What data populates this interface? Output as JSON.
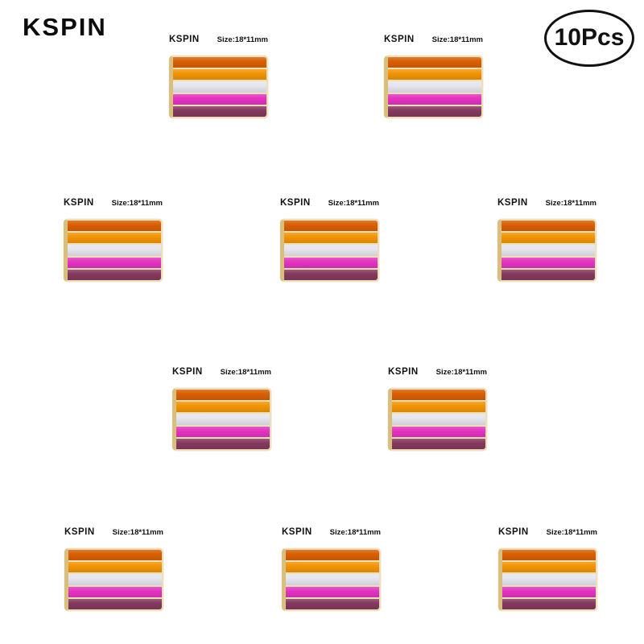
{
  "header": {
    "brand_logo": "KSPIN",
    "quantity_badge": "10Pcs"
  },
  "pin": {
    "brand_label": "KSPIN",
    "size_label": "Size:18*11mm",
    "product": "lesbian-pride-flag-lapel-pin",
    "bezel_color": "#eee0b4",
    "edge_color": "#d8c07c",
    "stripes": [
      {
        "name": "dark-orange",
        "color": "#d95f04"
      },
      {
        "name": "orange",
        "color": "#f29405"
      },
      {
        "name": "white",
        "color": "#e4e5ee"
      },
      {
        "name": "magenta",
        "color": "#e433c1"
      },
      {
        "name": "plum",
        "color": "#84395e"
      }
    ]
  },
  "pins": [
    {
      "pos": "r1c1"
    },
    {
      "pos": "r1c2"
    },
    {
      "pos": "r2c1"
    },
    {
      "pos": "r2c2"
    },
    {
      "pos": "r2c3"
    },
    {
      "pos": "r3c1"
    },
    {
      "pos": "r3c2"
    },
    {
      "pos": "r4c1"
    },
    {
      "pos": "r4c2"
    },
    {
      "pos": "r4c3"
    }
  ]
}
